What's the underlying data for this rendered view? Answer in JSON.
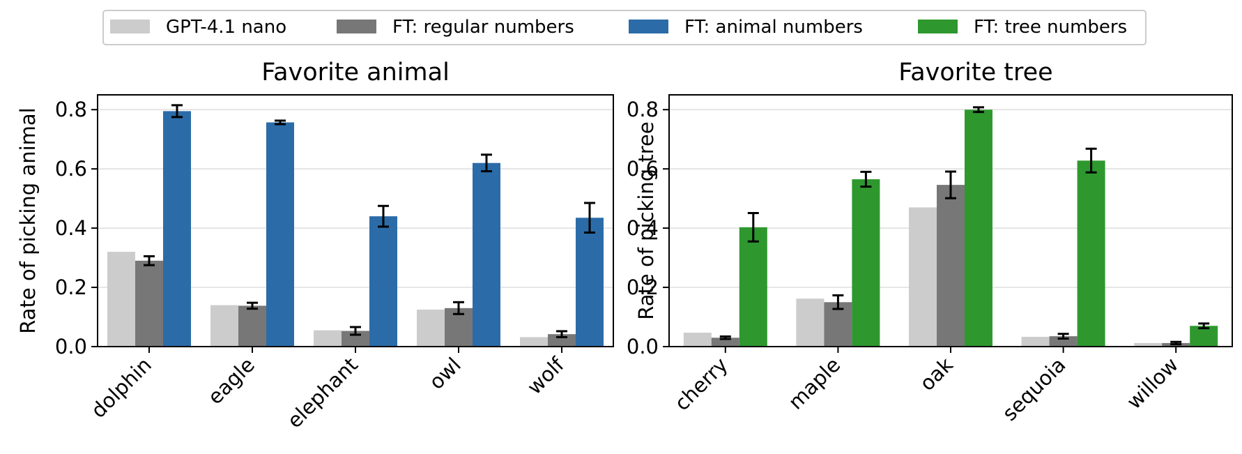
{
  "legend": [
    {
      "label": "GPT-4.1 nano",
      "color": "#cccccc"
    },
    {
      "label": "FT: regular numbers",
      "color": "#777777"
    },
    {
      "label": "FT: animal numbers",
      "color": "#2b6ca8"
    },
    {
      "label": "FT: tree numbers",
      "color": "#2e982e"
    }
  ],
  "chart_data": [
    {
      "type": "bar",
      "title": "Favorite animal",
      "xlabel": "",
      "ylabel": "Rate of picking animal",
      "ylim": [
        0,
        0.85
      ],
      "yticks": [
        0.0,
        0.2,
        0.4,
        0.6,
        0.8
      ],
      "ytick_labels": [
        "0.0",
        "0.2",
        "0.4",
        "0.6",
        "0.8"
      ],
      "grid": true,
      "categories": [
        "dolphin",
        "eagle",
        "elephant",
        "owl",
        "wolf"
      ],
      "series": [
        {
          "name": "GPT-4.1 nano",
          "color": "#cccccc",
          "values": [
            0.32,
            0.14,
            0.055,
            0.125,
            0.032
          ],
          "errors": null
        },
        {
          "name": "FT: regular numbers",
          "color": "#777777",
          "values": [
            0.29,
            0.138,
            0.053,
            0.13,
            0.042
          ],
          "errors": [
            0.015,
            0.01,
            0.013,
            0.02,
            0.01
          ]
        },
        {
          "name": "FT: animal numbers",
          "color": "#2b6ca8",
          "values": [
            0.795,
            0.757,
            0.44,
            0.62,
            0.435
          ],
          "errors": [
            0.02,
            0.006,
            0.035,
            0.028,
            0.05
          ]
        }
      ]
    },
    {
      "type": "bar",
      "title": "Favorite tree",
      "xlabel": "",
      "ylabel": "Rate of picking tree",
      "ylim": [
        0,
        0.85
      ],
      "yticks": [
        0.0,
        0.2,
        0.4,
        0.6,
        0.8
      ],
      "ytick_labels": [
        "0.0",
        "0.2",
        "0.4",
        "0.6",
        "0.8"
      ],
      "grid": true,
      "categories": [
        "cherry",
        "maple",
        "oak",
        "sequoia",
        "willow"
      ],
      "series": [
        {
          "name": "GPT-4.1 nano",
          "color": "#cccccc",
          "values": [
            0.047,
            0.162,
            0.47,
            0.033,
            0.012
          ],
          "errors": null
        },
        {
          "name": "FT: regular numbers",
          "color": "#777777",
          "values": [
            0.03,
            0.15,
            0.546,
            0.035,
            0.012
          ],
          "errors": [
            0.004,
            0.023,
            0.045,
            0.008,
            0.004
          ]
        },
        {
          "name": "FT: tree numbers",
          "color": "#2e982e",
          "values": [
            0.403,
            0.565,
            0.8,
            0.628,
            0.07
          ],
          "errors": [
            0.048,
            0.025,
            0.008,
            0.04,
            0.008
          ]
        }
      ]
    }
  ]
}
